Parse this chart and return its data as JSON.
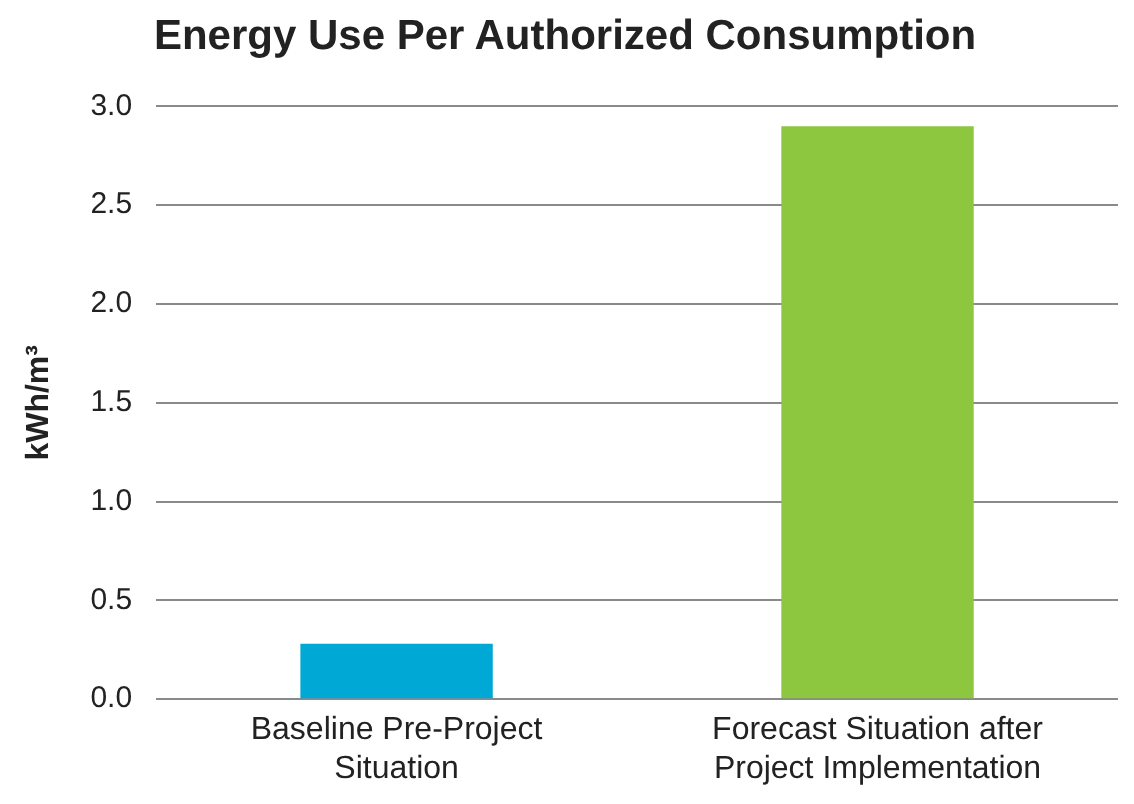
{
  "chart_data": {
    "type": "bar",
    "title": "Energy Use Per Authorized Consumption",
    "ylabel": "kWh/m³",
    "categories": [
      "Baseline Pre-Project Situation",
      "Forecast Situation after Project Implementation"
    ],
    "values": [
      0.28,
      2.9
    ],
    "colors": [
      "#00a8d6",
      "#8dc63f"
    ],
    "ylim": [
      0,
      3
    ],
    "yticks": [
      {
        "value": 0,
        "label": "0.0"
      },
      0.5,
      {
        "value": 1,
        "label": "1.0"
      },
      1.5,
      {
        "value": 2,
        "label": "2.0"
      },
      2.5,
      {
        "value": 3,
        "label": "3.0"
      }
    ],
    "grid": "y",
    "legend": false
  }
}
